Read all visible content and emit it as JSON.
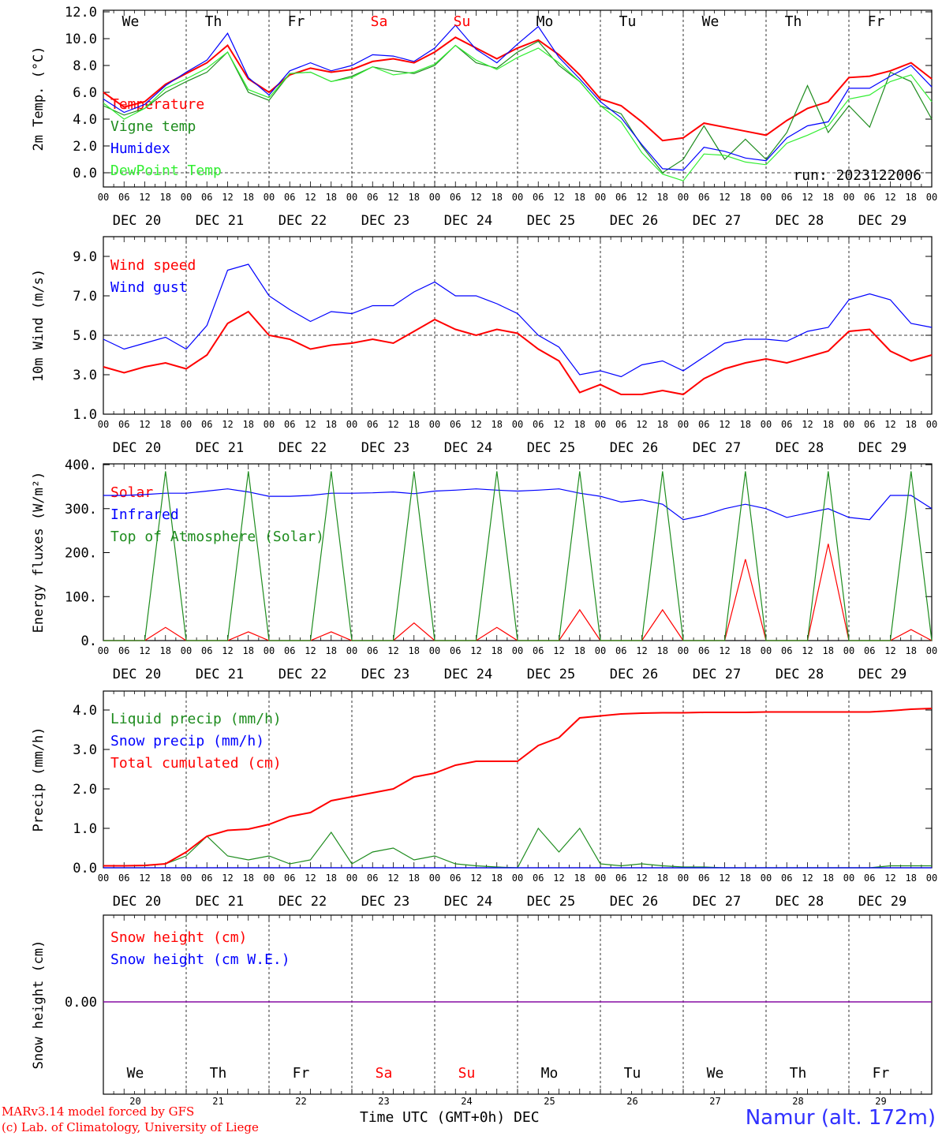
{
  "meta": {
    "run": "run: 2023122006",
    "model": "MARv3.14 model forced by GFS",
    "credit": "(c) Lab. of Climatology, University of Liege",
    "xlabel": "Time UTC (GMT+0h) DEC",
    "location": "Namur (alt. 172m)"
  },
  "colors": {
    "red": "#ff0000",
    "green": "#1e8c1e",
    "blue": "#0000ff",
    "lightgreen": "#33ee33",
    "purple": "#8000a0"
  },
  "days": [
    {
      "abbr": "We",
      "num": "20",
      "date": "DEC 20",
      "weekend": false
    },
    {
      "abbr": "Th",
      "num": "21",
      "date": "DEC 21",
      "weekend": false
    },
    {
      "abbr": "Fr",
      "num": "22",
      "date": "DEC 22",
      "weekend": false
    },
    {
      "abbr": "Sa",
      "num": "23",
      "date": "DEC 23",
      "weekend": true
    },
    {
      "abbr": "Su",
      "num": "24",
      "date": "DEC 24",
      "weekend": true
    },
    {
      "abbr": "Mo",
      "num": "25",
      "date": "DEC 25",
      "weekend": false
    },
    {
      "abbr": "Tu",
      "num": "26",
      "date": "DEC 26",
      "weekend": false
    },
    {
      "abbr": "We",
      "num": "27",
      "date": "DEC 27",
      "weekend": false
    },
    {
      "abbr": "Th",
      "num": "28",
      "date": "DEC 28",
      "weekend": false
    },
    {
      "abbr": "Fr",
      "num": "29",
      "date": "DEC 29",
      "weekend": false
    }
  ],
  "hour_labels": [
    "00",
    "06",
    "12",
    "18"
  ],
  "end_hour_label": "00",
  "chart_data": [
    {
      "type": "line",
      "ylabel": "2m Temp. (°C)",
      "ylim": [
        -1,
        12
      ],
      "yticks": [
        0,
        2,
        4,
        6,
        8,
        10,
        12
      ],
      "ytick_labels": [
        "0.0",
        "2.0",
        "4.0",
        "6.0",
        "8.0",
        "10.0",
        "12.0"
      ],
      "hline": 0,
      "x_hours": [
        0,
        6,
        12,
        18,
        24,
        30,
        36,
        42,
        48,
        54,
        60,
        66,
        72,
        78,
        84,
        90,
        96,
        102,
        108,
        114,
        120,
        126,
        132,
        138,
        144,
        150,
        156,
        162,
        168,
        174,
        180,
        186,
        192,
        198,
        204,
        210,
        216,
        222,
        228,
        234,
        240
      ],
      "series": [
        {
          "name": "Temperature",
          "color": "red",
          "values": [
            6.0,
            4.9,
            5.3,
            6.6,
            7.4,
            8.2,
            9.5,
            7.0,
            6.0,
            7.3,
            7.8,
            7.5,
            7.7,
            8.3,
            8.5,
            8.2,
            9.0,
            10.1,
            9.3,
            8.5,
            9.3,
            9.9,
            8.8,
            7.3,
            5.5,
            5.0,
            3.8,
            2.4,
            2.6,
            3.7,
            3.4,
            3.1,
            2.8,
            3.9,
            4.8,
            5.3,
            7.1,
            7.2,
            7.6,
            8.2,
            7.0
          ]
        },
        {
          "name": "Vigne temp",
          "color": "green",
          "values": [
            5.0,
            4.3,
            4.8,
            6.0,
            6.8,
            7.5,
            9.0,
            6.0,
            5.4,
            7.4,
            7.5,
            6.8,
            7.2,
            7.9,
            7.6,
            7.4,
            8.0,
            9.5,
            8.2,
            7.8,
            9.0,
            9.8,
            8.0,
            6.8,
            5.0,
            4.4,
            2.0,
            0.0,
            1.0,
            3.5,
            1.0,
            2.5,
            1.0,
            3.0,
            6.5,
            3.0,
            5.0,
            3.4,
            7.5,
            6.8,
            4.0
          ]
        },
        {
          "name": "Humidex",
          "color": "blue",
          "values": [
            5.5,
            4.5,
            5.1,
            6.5,
            7.5,
            8.4,
            10.4,
            7.1,
            5.8,
            7.6,
            8.2,
            7.6,
            8.0,
            8.8,
            8.7,
            8.3,
            9.3,
            11.0,
            9.2,
            8.2,
            9.6,
            10.9,
            8.6,
            7.0,
            5.3,
            4.1,
            2.1,
            0.3,
            0.2,
            1.9,
            1.6,
            1.1,
            0.9,
            2.6,
            3.5,
            3.8,
            6.3,
            6.3,
            7.2,
            8.0,
            6.4
          ]
        },
        {
          "name": "DewPoint Temp",
          "color": "lightgreen",
          "values": [
            5.2,
            4.0,
            4.8,
            6.3,
            7.0,
            7.8,
            9.0,
            6.2,
            5.6,
            7.4,
            7.5,
            6.8,
            7.1,
            7.9,
            7.3,
            7.5,
            8.1,
            9.5,
            8.4,
            7.7,
            8.6,
            9.3,
            8.2,
            6.8,
            5.0,
            3.8,
            1.5,
            -0.1,
            -0.6,
            1.4,
            1.3,
            0.8,
            0.6,
            2.2,
            2.8,
            3.5,
            5.5,
            5.8,
            6.8,
            7.3,
            5.3
          ]
        }
      ]
    },
    {
      "type": "line",
      "ylabel": "10m Wind (m/s)",
      "ylim": [
        1,
        10
      ],
      "yticks": [
        1,
        3,
        5,
        7,
        9
      ],
      "ytick_labels": [
        "1.0",
        "3.0",
        "5.0",
        "7.0",
        "9.0"
      ],
      "hline": 5,
      "x_hours": [
        0,
        6,
        12,
        18,
        24,
        30,
        36,
        42,
        48,
        54,
        60,
        66,
        72,
        78,
        84,
        90,
        96,
        102,
        108,
        114,
        120,
        126,
        132,
        138,
        144,
        150,
        156,
        162,
        168,
        174,
        180,
        186,
        192,
        198,
        204,
        210,
        216,
        222,
        228,
        234,
        240
      ],
      "series": [
        {
          "name": "Wind speed",
          "color": "red",
          "values": [
            3.4,
            3.1,
            3.4,
            3.6,
            3.3,
            4.0,
            5.6,
            6.2,
            5.0,
            4.8,
            4.3,
            4.5,
            4.6,
            4.8,
            4.6,
            5.2,
            5.8,
            5.3,
            5.0,
            5.3,
            5.1,
            4.3,
            3.7,
            2.1,
            2.5,
            2.0,
            2.0,
            2.2,
            2.0,
            2.8,
            3.3,
            3.6,
            3.8,
            3.6,
            3.9,
            4.2,
            5.2,
            5.3,
            4.2,
            3.7,
            4.0
          ]
        },
        {
          "name": "Wind gust",
          "color": "blue",
          "values": [
            4.8,
            4.3,
            4.6,
            4.9,
            4.3,
            5.5,
            8.3,
            8.6,
            7.0,
            6.3,
            5.7,
            6.2,
            6.1,
            6.5,
            6.5,
            7.2,
            7.7,
            7.0,
            7.0,
            6.6,
            6.1,
            5.0,
            4.4,
            3.0,
            3.2,
            2.9,
            3.5,
            3.7,
            3.2,
            3.9,
            4.6,
            4.8,
            4.8,
            4.7,
            5.2,
            5.4,
            6.8,
            7.1,
            6.8,
            5.6,
            5.4
          ]
        }
      ]
    },
    {
      "type": "line",
      "ylabel": "Energy fluxes (W/m²)",
      "ylim": [
        0,
        400
      ],
      "yticks": [
        0,
        100,
        200,
        300,
        400
      ],
      "ytick_labels": [
        "0.",
        "100.",
        "200.",
        "300.",
        "400."
      ],
      "x_hours": [
        0,
        6,
        12,
        18,
        24,
        30,
        36,
        42,
        48,
        54,
        60,
        66,
        72,
        78,
        84,
        90,
        96,
        102,
        108,
        114,
        120,
        126,
        132,
        138,
        144,
        150,
        156,
        162,
        168,
        174,
        180,
        186,
        192,
        198,
        204,
        210,
        216,
        222,
        228,
        234,
        240
      ],
      "series": [
        {
          "name": "Solar",
          "color": "red",
          "values": [
            0,
            0,
            0,
            30,
            0,
            0,
            0,
            20,
            0,
            0,
            0,
            20,
            0,
            0,
            0,
            40,
            0,
            0,
            0,
            30,
            0,
            0,
            0,
            70,
            0,
            0,
            0,
            70,
            0,
            0,
            0,
            185,
            0,
            0,
            0,
            220,
            0,
            0,
            0,
            25,
            0
          ]
        },
        {
          "name": "Infrared",
          "color": "blue",
          "values": [
            330,
            330,
            332,
            335,
            335,
            340,
            345,
            338,
            328,
            328,
            330,
            335,
            335,
            336,
            338,
            334,
            340,
            342,
            345,
            342,
            340,
            342,
            345,
            335,
            328,
            315,
            320,
            310,
            275,
            285,
            300,
            310,
            300,
            280,
            290,
            300,
            280,
            275,
            330,
            330,
            300
          ]
        },
        {
          "name": "Top of Atmosphere (Solar)",
          "color": "green",
          "values": [
            0,
            0,
            0,
            385,
            0,
            0,
            0,
            385,
            0,
            0,
            0,
            385,
            0,
            0,
            0,
            385,
            0,
            0,
            0,
            385,
            0,
            0,
            0,
            385,
            0,
            0,
            0,
            385,
            0,
            0,
            0,
            385,
            0,
            0,
            0,
            385,
            0,
            0,
            0,
            385,
            0
          ]
        }
      ]
    },
    {
      "type": "line",
      "ylabel": "Precip (mm/h)",
      "ylim": [
        0,
        4.5
      ],
      "yticks": [
        0,
        1,
        2,
        3,
        4
      ],
      "ytick_labels": [
        "0.0",
        "1.0",
        "2.0",
        "3.0",
        "4.0"
      ],
      "x_hours": [
        0,
        6,
        12,
        18,
        24,
        30,
        36,
        42,
        48,
        54,
        60,
        66,
        72,
        78,
        84,
        90,
        96,
        102,
        108,
        114,
        120,
        126,
        132,
        138,
        144,
        150,
        156,
        162,
        168,
        174,
        180,
        186,
        192,
        198,
        204,
        210,
        216,
        222,
        228,
        234,
        240
      ],
      "series": [
        {
          "name": "Liquid precip (mm/h)",
          "color": "green",
          "values": [
            0.05,
            0.05,
            0.05,
            0.1,
            0.3,
            0.8,
            0.3,
            0.2,
            0.3,
            0.1,
            0.2,
            0.9,
            0.1,
            0.4,
            0.5,
            0.2,
            0.3,
            0.1,
            0.05,
            0.02,
            0.0,
            1.0,
            0.4,
            1.0,
            0.1,
            0.05,
            0.1,
            0.05,
            0.02,
            0.02,
            0.0,
            0.0,
            0.0,
            0.0,
            0.0,
            0.0,
            0.0,
            0.0,
            0.05,
            0.05,
            0.05
          ]
        },
        {
          "name": "Snow precip (mm/h)",
          "color": "blue",
          "values": [
            0,
            0,
            0,
            0,
            0,
            0,
            0,
            0,
            0,
            0,
            0,
            0,
            0,
            0,
            0,
            0,
            0,
            0,
            0,
            0,
            0,
            0,
            0,
            0,
            0,
            0,
            0,
            0,
            0,
            0,
            0,
            0,
            0,
            0,
            0,
            0,
            0,
            0,
            0,
            0,
            0
          ]
        },
        {
          "name": "Total cumulated (cm)",
          "color": "red",
          "values": [
            0.05,
            0.05,
            0.06,
            0.1,
            0.4,
            0.8,
            0.95,
            0.98,
            1.1,
            1.3,
            1.4,
            1.7,
            1.8,
            1.9,
            2.0,
            2.3,
            2.4,
            2.6,
            2.7,
            2.7,
            2.7,
            3.1,
            3.3,
            3.8,
            3.85,
            3.9,
            3.92,
            3.93,
            3.93,
            3.94,
            3.94,
            3.94,
            3.95,
            3.95,
            3.95,
            3.95,
            3.95,
            3.95,
            3.98,
            4.02,
            4.04
          ]
        }
      ]
    },
    {
      "type": "line",
      "ylabel": "Snow height (cm)",
      "ylim": [
        -1,
        1
      ],
      "yticks": [
        0
      ],
      "ytick_labels": [
        "0.00"
      ],
      "x_hours": [
        0,
        240
      ],
      "series": [
        {
          "name": "Snow height (cm)",
          "color": "red",
          "values": [
            0,
            0
          ]
        },
        {
          "name": "Snow height (cm W.E.)",
          "color": "blue",
          "values": [
            0,
            0
          ]
        }
      ]
    }
  ]
}
